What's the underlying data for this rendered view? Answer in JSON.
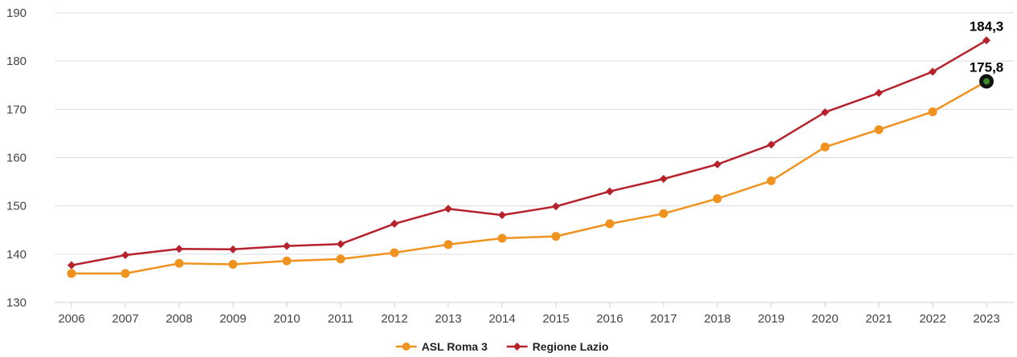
{
  "chart_data": {
    "type": "line",
    "title": "",
    "xlabel": "",
    "ylabel": "",
    "x": [
      "2006",
      "2007",
      "2008",
      "2009",
      "2010",
      "2011",
      "2012",
      "2013",
      "2014",
      "2015",
      "2016",
      "2017",
      "2018",
      "2019",
      "2020",
      "2021",
      "2022",
      "2023"
    ],
    "ylim": [
      130,
      190
    ],
    "yticks": [
      "130",
      "140",
      "150",
      "160",
      "170",
      "180",
      "190"
    ],
    "grid": true,
    "legend_position": "bottom-center",
    "series": [
      {
        "name": "ASL Roma 3",
        "color": "#f0921e",
        "marker": "circle",
        "values": [
          136.0,
          136.0,
          138.1,
          137.9,
          138.6,
          139.0,
          140.3,
          142.0,
          143.3,
          143.7,
          146.3,
          148.4,
          151.5,
          155.2,
          162.2,
          165.8,
          169.5,
          175.8
        ]
      },
      {
        "name": "Regione Lazio",
        "color": "#b5222b",
        "marker": "diamond",
        "values": [
          137.7,
          139.8,
          141.1,
          141.0,
          141.7,
          142.1,
          146.3,
          149.4,
          148.1,
          149.9,
          153.0,
          155.6,
          158.6,
          162.7,
          169.4,
          173.4,
          177.8,
          184.3
        ]
      }
    ],
    "annotations": [
      {
        "series": "Regione Lazio",
        "x": "2023",
        "text": "184,3"
      },
      {
        "series": "ASL Roma 3",
        "x": "2023",
        "text": "175,8",
        "highlight_color": "#3a8a2a"
      }
    ]
  }
}
